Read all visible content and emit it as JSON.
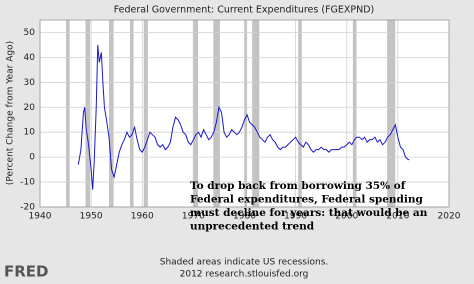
{
  "chart_data": {
    "type": "line",
    "title": "Federal Government: Current Expenditures (FGEXPND)",
    "ylabel": "(Percent Change from Year Ago)",
    "footer": [
      "Shaded areas indicate US recessions.",
      "2012 research.stlouisfed.org"
    ],
    "logo": "FRED",
    "annotation": [
      "To drop back from borrowing 35% of",
      "Federal expenditures, Federal spending",
      "must decline for years: that would be an",
      "unprecedented trend"
    ],
    "color": "#1a1acc",
    "recession_color": "#c3c3c3",
    "grid": true,
    "xlim": [
      1940,
      2020
    ],
    "xticks": [
      1940,
      1950,
      1960,
      1970,
      1980,
      1990,
      2000,
      2010,
      2020
    ],
    "ylim": [
      -20,
      55
    ],
    "yticks": [
      -20,
      -10,
      0,
      10,
      20,
      30,
      40,
      50
    ],
    "recessions": [
      [
        1945.1,
        1945.8
      ],
      [
        1948.9,
        1949.8
      ],
      [
        1953.5,
        1954.4
      ],
      [
        1957.6,
        1958.3
      ],
      [
        1960.3,
        1961.1
      ],
      [
        1969.9,
        1970.9
      ],
      [
        1973.9,
        1975.2
      ],
      [
        1980.0,
        1980.5
      ],
      [
        1981.5,
        1982.9
      ],
      [
        1990.5,
        1991.2
      ],
      [
        2001.2,
        2001.9
      ],
      [
        2007.9,
        2009.5
      ]
    ],
    "x": [
      1947.5,
      1948,
      1948.5,
      1948.75,
      1949,
      1949.5,
      1950,
      1950.3,
      1950.6,
      1951,
      1951.3,
      1951.6,
      1952,
      1952.3,
      1952.6,
      1953,
      1953.5,
      1954,
      1954.5,
      1955,
      1955.5,
      1956,
      1956.5,
      1957,
      1957.5,
      1958,
      1958.5,
      1959,
      1959.5,
      1960,
      1960.5,
      1961,
      1961.5,
      1962,
      1962.5,
      1963,
      1963.5,
      1964,
      1964.5,
      1965,
      1965.5,
      1966,
      1966.5,
      1967,
      1967.5,
      1968,
      1968.5,
      1969,
      1969.5,
      1970,
      1970.5,
      1971,
      1971.5,
      1972,
      1972.5,
      1973,
      1973.5,
      1974,
      1974.5,
      1975,
      1975.5,
      1976,
      1976.5,
      1977,
      1977.5,
      1978,
      1978.5,
      1979,
      1979.5,
      1980,
      1980.5,
      1981,
      1981.5,
      1982,
      1982.5,
      1983,
      1983.5,
      1984,
      1984.5,
      1985,
      1985.5,
      1986,
      1986.5,
      1987,
      1987.5,
      1988,
      1988.5,
      1989,
      1989.5,
      1990,
      1990.5,
      1991,
      1991.5,
      1992,
      1992.5,
      1993,
      1993.5,
      1994,
      1994.5,
      1995,
      1995.5,
      1996,
      1996.5,
      1997,
      1997.5,
      1998,
      1998.5,
      1999,
      1999.5,
      2000,
      2000.5,
      2001,
      2001.5,
      2002,
      2002.5,
      2003,
      2003.5,
      2004,
      2004.5,
      2005,
      2005.5,
      2006,
      2006.5,
      2007,
      2007.5,
      2008,
      2008.5,
      2009,
      2009.5,
      2010,
      2010.5,
      2011,
      2011.5,
      2012,
      2012.25
    ],
    "values": [
      -3,
      3,
      18,
      20,
      12,
      5,
      -5,
      -13,
      -2,
      20,
      45,
      38,
      42,
      30,
      20,
      15,
      8,
      -5,
      -8,
      -3,
      2,
      5,
      7,
      10,
      8,
      9,
      12,
      7,
      3,
      2,
      4,
      7,
      10,
      9,
      8,
      5,
      4,
      5,
      3,
      4,
      6,
      12,
      16,
      15,
      13,
      10,
      9,
      6,
      5,
      7,
      9,
      10,
      8,
      11,
      9,
      7,
      8,
      10,
      14,
      20,
      18,
      10,
      8,
      9,
      11,
      10,
      9,
      10,
      12,
      15,
      17,
      14,
      13,
      12,
      10,
      8,
      7,
      6,
      8,
      9,
      7,
      6,
      4,
      3,
      4,
      4,
      5,
      6,
      7,
      8,
      6,
      5,
      4,
      6,
      5,
      3,
      2,
      3,
      3,
      4,
      3,
      3,
      2,
      3,
      3,
      3,
      3,
      4,
      4,
      5,
      6,
      5,
      7,
      8,
      8,
      7,
      8,
      6,
      7,
      7,
      8,
      6,
      7,
      5,
      6,
      8,
      9,
      11,
      13,
      8,
      4,
      3,
      0,
      -1,
      -1
    ]
  }
}
